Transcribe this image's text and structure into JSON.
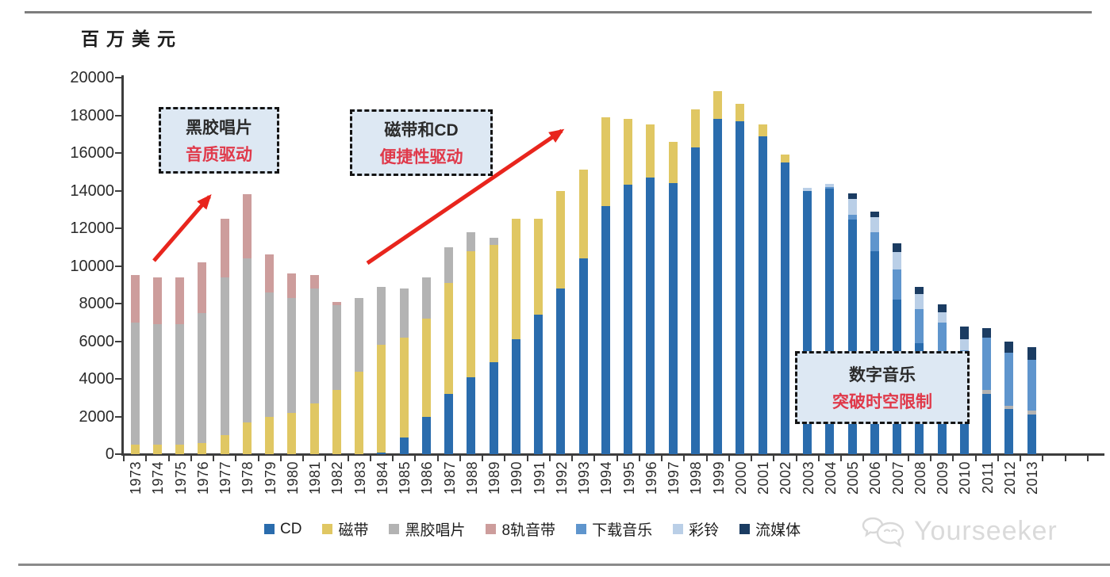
{
  "page": {
    "watermark": "Yourseeker"
  },
  "annotations": [
    {
      "line1": "黑胶唱片",
      "line2": "音质驱动"
    },
    {
      "line1": "磁带和CD",
      "line2": "便捷性驱动"
    },
    {
      "line1": "数字音乐",
      "line2": "突破时空限制"
    }
  ],
  "colors": {
    "accent_red": "#e8251d",
    "callout_bg": "#dde8f3",
    "axis": "#3d3d3d",
    "watermark_gray": "#dadada"
  },
  "chart_data": {
    "type": "bar",
    "stacked": true,
    "unit": "百万美元",
    "ylim": [
      0,
      20000
    ],
    "ytick_interval": 2000,
    "grid": false,
    "legend_position": "bottom",
    "categories": [
      "1973",
      "1974",
      "1975",
      "1976",
      "1977",
      "1978",
      "1979",
      "1980",
      "1981",
      "1982",
      "1983",
      "1984",
      "1985",
      "1986",
      "1987",
      "1988",
      "1989",
      "1990",
      "1991",
      "1992",
      "1993",
      "1994",
      "1995",
      "1996",
      "1997",
      "1998",
      "1999",
      "2000",
      "2001",
      "2002",
      "2003",
      "2004",
      "2005",
      "2006",
      "2007",
      "2008",
      "2009",
      "2010",
      "2011",
      "2012",
      "2013"
    ],
    "series": [
      {
        "name": "CD",
        "color": "#2a6cad",
        "values": [
          0,
          0,
          0,
          0,
          0,
          0,
          0,
          0,
          0,
          0,
          0,
          100,
          900,
          2000,
          3200,
          4100,
          4900,
          6100,
          7400,
          8800,
          10400,
          13200,
          14300,
          14700,
          14400,
          16300,
          17800,
          17700,
          16900,
          15500,
          14000,
          14100,
          12450,
          10800,
          8200,
          5900,
          4600,
          3700,
          3200,
          2400,
          2100
        ]
      },
      {
        "name": "磁带",
        "color": "#e0c763",
        "values": [
          500,
          500,
          500,
          600,
          1000,
          1700,
          2000,
          2200,
          2700,
          3400,
          4400,
          5700,
          5300,
          5200,
          5900,
          6700,
          6200,
          6400,
          5100,
          5200,
          4700,
          4700,
          3500,
          2800,
          2200,
          2000,
          1500,
          900,
          600,
          400,
          0,
          0,
          0,
          0,
          0,
          0,
          0,
          0,
          0,
          0,
          0
        ]
      },
      {
        "name": "黑胶唱片",
        "color": "#b3b3b3",
        "values": [
          6500,
          6400,
          6400,
          6900,
          8400,
          8700,
          6600,
          6100,
          6100,
          4500,
          3900,
          3100,
          2600,
          2200,
          1900,
          1000,
          400,
          0,
          0,
          0,
          0,
          0,
          0,
          0,
          0,
          0,
          0,
          0,
          0,
          0,
          0,
          0,
          0,
          0,
          0,
          0,
          0,
          0,
          200,
          150,
          200
        ]
      },
      {
        "name": "8轨音带",
        "color": "#cd9d9c",
        "values": [
          2500,
          2500,
          2500,
          2700,
          3100,
          3400,
          2000,
          1300,
          700,
          200,
          0,
          0,
          0,
          0,
          0,
          0,
          0,
          0,
          0,
          0,
          0,
          0,
          0,
          0,
          0,
          0,
          0,
          0,
          0,
          0,
          0,
          0,
          0,
          0,
          0,
          0,
          0,
          0,
          0,
          0,
          0
        ]
      },
      {
        "name": "下载音乐",
        "color": "#5f95cd",
        "values": [
          0,
          0,
          0,
          0,
          0,
          0,
          0,
          0,
          0,
          0,
          0,
          0,
          0,
          0,
          0,
          0,
          0,
          0,
          0,
          0,
          0,
          0,
          0,
          0,
          0,
          0,
          0,
          0,
          0,
          0,
          0,
          100,
          250,
          1000,
          1600,
          1800,
          2400,
          1800,
          2800,
          2850,
          2700
        ]
      },
      {
        "name": "彩铃",
        "color": "#bacfe7",
        "values": [
          0,
          0,
          0,
          0,
          0,
          0,
          0,
          0,
          0,
          0,
          0,
          0,
          0,
          0,
          0,
          0,
          0,
          0,
          0,
          0,
          0,
          0,
          0,
          0,
          0,
          0,
          0,
          0,
          0,
          0,
          150,
          150,
          850,
          800,
          950,
          800,
          550,
          600,
          0,
          0,
          0
        ]
      },
      {
        "name": "流媒体",
        "color": "#1b3c62",
        "values": [
          0,
          0,
          0,
          0,
          0,
          0,
          0,
          0,
          0,
          0,
          0,
          0,
          0,
          0,
          0,
          0,
          0,
          0,
          0,
          0,
          0,
          0,
          0,
          0,
          0,
          0,
          0,
          0,
          0,
          0,
          0,
          0,
          300,
          300,
          450,
          400,
          400,
          700,
          500,
          600,
          700
        ]
      }
    ]
  }
}
